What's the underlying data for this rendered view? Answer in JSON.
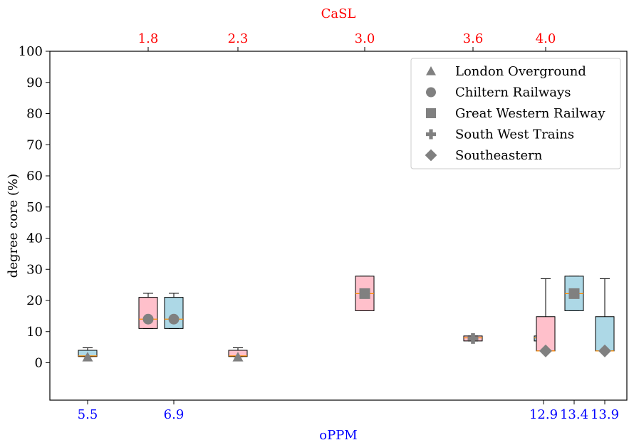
{
  "chart_data": {
    "type": "box",
    "ylabel": "degree core (%)",
    "xlabel_bottom": "oPPM",
    "xlabel_top": "CaSL",
    "ylim": [
      -12,
      100
    ],
    "yticks": [
      0,
      10,
      20,
      30,
      40,
      50,
      60,
      70,
      80,
      90,
      100
    ],
    "bottom_ticks": [
      {
        "label": "5.5",
        "value": 5.5
      },
      {
        "label": "6.9",
        "value": 6.9
      },
      {
        "label": "12.9",
        "value": 12.9
      },
      {
        "label": "13.4",
        "value": 13.4
      },
      {
        "label": "13.9",
        "value": 13.9
      }
    ],
    "top_ticks": [
      {
        "label": "1.8",
        "value": 1.8
      },
      {
        "label": "2.3",
        "value": 2.3
      },
      {
        "label": "3.0",
        "value": 3.0
      },
      {
        "label": "3.6",
        "value": 3.6
      },
      {
        "label": "4.0",
        "value": 4.0
      }
    ],
    "colors": {
      "oppm_box": "#add8e6",
      "casl_box": "#ffc0cb",
      "marker": "#808080",
      "median": "#ff8c00",
      "top_axis": "#ff0000",
      "bottom_axis": "#0000ff"
    },
    "legend_position": "upper right",
    "legend": [
      {
        "label": "London Overground",
        "marker": "triangle"
      },
      {
        "label": "Chiltern Railways",
        "marker": "circle"
      },
      {
        "label": "Great Western Railway",
        "marker": "square"
      },
      {
        "label": "South West Trains",
        "marker": "plus"
      },
      {
        "label": "Southeastern",
        "marker": "diamond"
      }
    ],
    "boxes": [
      {
        "axis": "oPPM",
        "x": 5.5,
        "q1": 2,
        "median": 2.2,
        "q3": 4,
        "whisker_low": 2,
        "whisker_high": 4.8,
        "marker": "triangle",
        "marker_y": 1.8
      },
      {
        "axis": "CaSL",
        "x": 1.8,
        "q1": 11,
        "median": 14,
        "q3": 21,
        "whisker_low": 11,
        "whisker_high": 22.3,
        "marker": "circle",
        "marker_y": 14
      },
      {
        "axis": "oPPM",
        "x": 6.9,
        "q1": 11,
        "median": 14,
        "q3": 21,
        "whisker_low": 11,
        "whisker_high": 22.3,
        "marker": "circle",
        "marker_y": 14
      },
      {
        "axis": "CaSL",
        "x": 2.3,
        "q1": 2,
        "median": 2.2,
        "q3": 4,
        "whisker_low": 2,
        "whisker_high": 4.8,
        "marker": "triangle",
        "marker_y": 1.8
      },
      {
        "axis": "CaSL",
        "x": 3.0,
        "q1": 16.7,
        "median": 22.2,
        "q3": 27.8,
        "whisker_low": 16.7,
        "whisker_high": 27.8,
        "marker": "square",
        "marker_y": 22.2
      },
      {
        "axis": "CaSL",
        "x": 3.6,
        "q1": 7,
        "median": 8,
        "q3": 8.6,
        "whisker_low": 7,
        "whisker_high": 8.6,
        "marker": "plus",
        "marker_y": 7.8
      },
      {
        "axis": "oPPM",
        "x": 12.9,
        "q1": 7,
        "median": 8,
        "q3": 8.6,
        "whisker_low": 7,
        "whisker_high": 8.6,
        "marker": "plus",
        "marker_y": 7.8
      },
      {
        "axis": "CaSL",
        "x": 4.0,
        "q1": 3.8,
        "median": 3.8,
        "q3": 14.8,
        "whisker_low": 3.8,
        "whisker_high": 27,
        "marker": "diamond",
        "marker_y": 3.8
      },
      {
        "axis": "oPPM",
        "x": 13.4,
        "q1": 16.7,
        "median": 22.2,
        "q3": 27.8,
        "whisker_low": 16.7,
        "whisker_high": 27.8,
        "marker": "square",
        "marker_y": 22.2
      },
      {
        "axis": "oPPM",
        "x": 13.9,
        "q1": 3.8,
        "median": 3.8,
        "q3": 14.8,
        "whisker_low": 3.8,
        "whisker_high": 27,
        "marker": "diamond",
        "marker_y": 3.8
      }
    ]
  }
}
